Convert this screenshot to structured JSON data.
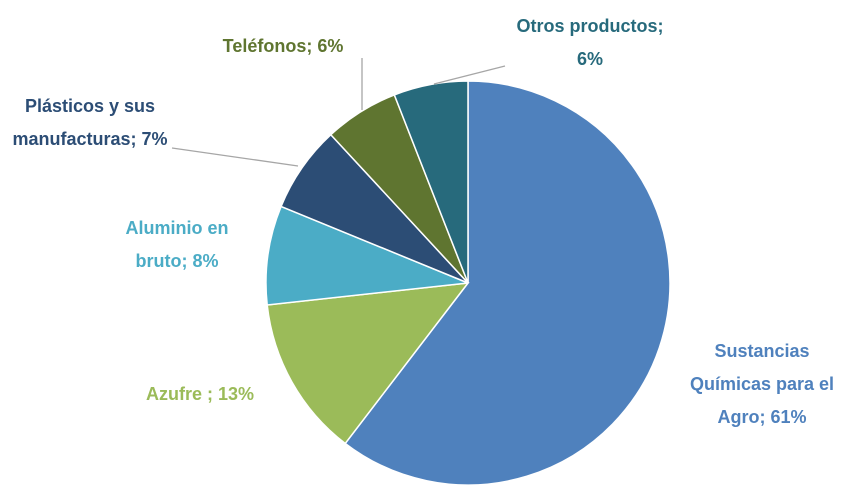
{
  "chart_data": {
    "type": "pie",
    "value_labels": [
      "Sustancias Químicas para el Agro; 61%",
      "Azufre ; 13%",
      "Aluminio en bruto; 8%",
      "Plásticos y sus manufacturas; 7%",
      "Teléfonos; 6%",
      "Otros productos; 6%"
    ],
    "values": [
      61,
      13,
      8,
      7,
      6,
      6
    ],
    "colors": [
      "#4f81bd",
      "#9bbb59",
      "#4bacc6",
      "#2c4d75",
      "#5f7530",
      "#276a7c"
    ]
  }
}
